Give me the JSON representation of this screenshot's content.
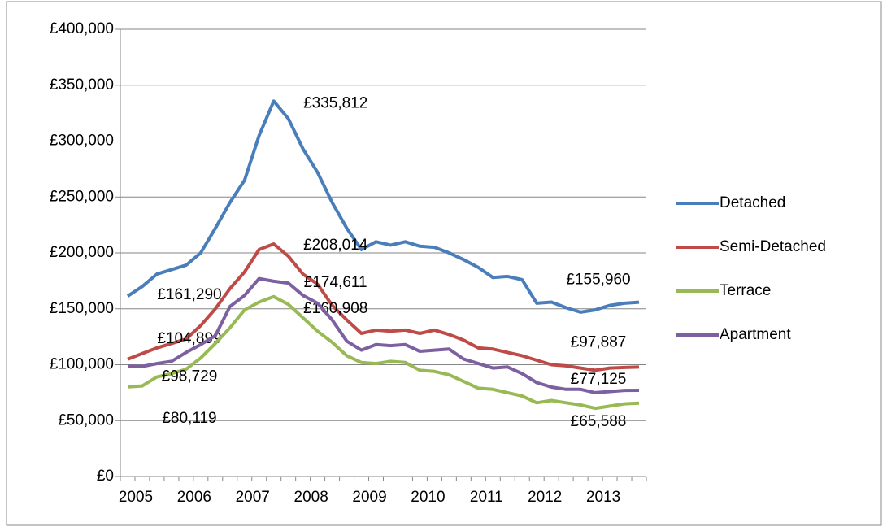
{
  "chart_data": {
    "type": "line",
    "categories": [
      "2005",
      null,
      null,
      null,
      "2006",
      null,
      null,
      null,
      "2007",
      null,
      null,
      null,
      "2008",
      null,
      null,
      null,
      "2009",
      null,
      null,
      null,
      "2010",
      null,
      null,
      null,
      "2011",
      null,
      null,
      null,
      "2012",
      null,
      null,
      null,
      "2013",
      null,
      null,
      null
    ],
    "ylim": [
      0,
      400000
    ],
    "yticks": [
      {
        "value": 0,
        "label": "£0"
      },
      {
        "value": 50000,
        "label": "£50,000"
      },
      {
        "value": 100000,
        "label": "£100,000"
      },
      {
        "value": 150000,
        "label": "£150,000"
      },
      {
        "value": 200000,
        "label": "£200,000"
      },
      {
        "value": 250000,
        "label": "£250,000"
      },
      {
        "value": 300000,
        "label": "£300,000"
      },
      {
        "value": 350000,
        "label": "£350,000"
      },
      {
        "value": 400000,
        "label": "£400,000"
      }
    ],
    "grid": true,
    "legend": "right",
    "series": [
      {
        "name": "Detached",
        "color": "#4a7ebb",
        "values": [
          161290,
          170000,
          181000,
          185000,
          189000,
          200000,
          222000,
          245000,
          265000,
          305000,
          335812,
          320000,
          293000,
          272000,
          245000,
          222000,
          203000,
          210000,
          207000,
          210000,
          206000,
          205000,
          200000,
          194000,
          187000,
          178000,
          179000,
          176000,
          155000,
          156000,
          151000,
          147000,
          149000,
          153000,
          155000,
          155960
        ],
        "value_labels": [
          "£161,290",
          null,
          null,
          null,
          null,
          null,
          null,
          null,
          null,
          null,
          "£335,812",
          null,
          null,
          null,
          null,
          null,
          null,
          null,
          null,
          null,
          null,
          null,
          null,
          null,
          null,
          null,
          null,
          null,
          null,
          null,
          null,
          null,
          null,
          null,
          null,
          "£155,960"
        ]
      },
      {
        "name": "Semi-Detached",
        "color": "#be4b48",
        "values": [
          104899,
          110000,
          115000,
          119000,
          123000,
          135000,
          150000,
          168000,
          183000,
          203000,
          208014,
          197000,
          181000,
          172000,
          153000,
          140000,
          128000,
          131000,
          130000,
          131000,
          128000,
          131000,
          127000,
          122000,
          115000,
          114000,
          111000,
          108000,
          104000,
          100000,
          99000,
          97000,
          95000,
          97000,
          97500,
          97887
        ],
        "value_labels": [
          "£104,899",
          null,
          null,
          null,
          null,
          null,
          null,
          null,
          null,
          null,
          "£208,014",
          null,
          null,
          null,
          null,
          null,
          null,
          null,
          null,
          null,
          null,
          null,
          null,
          null,
          null,
          null,
          null,
          null,
          null,
          null,
          null,
          null,
          null,
          null,
          null,
          "£97,887"
        ]
      },
      {
        "name": "Terrace",
        "color": "#98b954",
        "values": [
          80119,
          81000,
          89000,
          92000,
          96000,
          106000,
          119000,
          133000,
          149000,
          156000,
          160908,
          154000,
          142000,
          130000,
          120000,
          108000,
          102000,
          101000,
          103000,
          102000,
          95000,
          94000,
          91000,
          85000,
          79000,
          78000,
          75000,
          72000,
          66000,
          68000,
          66000,
          64000,
          61000,
          63000,
          65000,
          65588
        ],
        "value_labels": [
          "£80,119",
          null,
          null,
          null,
          null,
          null,
          null,
          null,
          null,
          null,
          "£160,908",
          null,
          null,
          null,
          null,
          null,
          null,
          null,
          null,
          null,
          null,
          null,
          null,
          null,
          null,
          null,
          null,
          null,
          null,
          null,
          null,
          null,
          null,
          null,
          null,
          "£65,588"
        ]
      },
      {
        "name": "Apartment",
        "color": "#7d60a0",
        "values": [
          98729,
          98500,
          101000,
          103000,
          111000,
          118000,
          126000,
          152000,
          162000,
          177000,
          174611,
          173000,
          162000,
          155000,
          140000,
          121000,
          113000,
          118000,
          117000,
          118000,
          112000,
          113000,
          114000,
          105000,
          101000,
          97000,
          98000,
          92000,
          84000,
          80000,
          78000,
          78000,
          75000,
          76000,
          77000,
          77125
        ],
        "value_labels": [
          "£98,729",
          null,
          null,
          null,
          null,
          null,
          null,
          null,
          null,
          null,
          "£174,611",
          null,
          null,
          null,
          null,
          null,
          null,
          null,
          null,
          null,
          null,
          null,
          null,
          null,
          null,
          null,
          null,
          null,
          null,
          null,
          null,
          null,
          null,
          null,
          null,
          "£77,125"
        ]
      }
    ]
  }
}
